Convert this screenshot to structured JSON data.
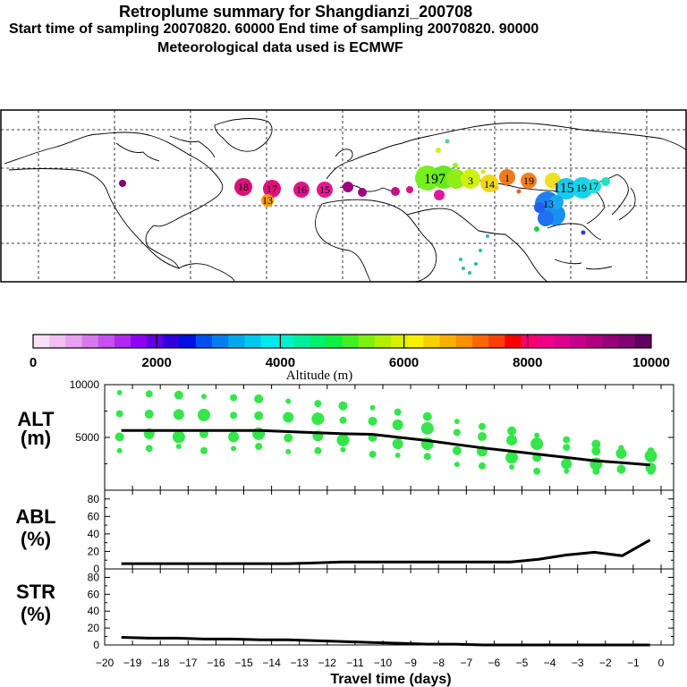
{
  "header": {
    "title": "Retroplume summary for Shangdianzi_200708",
    "times": "Start time of sampling 20070820. 60000     End time of sampling 20070820. 90000",
    "met": "Meteorological data used is ECMWF"
  },
  "map": {
    "clusters": [
      {
        "label": "18",
        "color": "#e0147a"
      },
      {
        "label": "17",
        "color": "#e8107a"
      },
      {
        "label": "13",
        "color": "#ff9a00"
      },
      {
        "label": "16",
        "color": "#e0148a"
      },
      {
        "label": "15",
        "color": "#e81890"
      },
      {
        "label": "197",
        "color": "#62ea1c"
      },
      {
        "label": "3",
        "color": "#d8ee10"
      },
      {
        "label": "14",
        "color": "#f0d020"
      },
      {
        "label": "1",
        "color": "#f07a18"
      },
      {
        "label": "19",
        "color": "#f08020"
      },
      {
        "label": "115",
        "color": "#18c8f0"
      },
      {
        "label": "19",
        "color": "#18d0e8"
      },
      {
        "label": "17",
        "color": "#20b8f0"
      },
      {
        "label": "13",
        "color": "#2070f0"
      }
    ]
  },
  "colorbar": {
    "colors": [
      "#f8e0f8",
      "#f0c0f0",
      "#e8a0f0",
      "#d878f0",
      "#c850f0",
      "#b028f0",
      "#9000f0",
      "#6000e0",
      "#3000e0",
      "#0010e0",
      "#0050f0",
      "#0080f0",
      "#00a8f0",
      "#00c8f0",
      "#00e8f0",
      "#00f0d0",
      "#00f0a0",
      "#00f070",
      "#10f040",
      "#40f020",
      "#80f010",
      "#b0f000",
      "#d8f000",
      "#f8f000",
      "#f8d000",
      "#f8b000",
      "#f89000",
      "#f86800",
      "#f84000",
      "#f80000",
      "#f8006c",
      "#f00088",
      "#e00090",
      "#c80090",
      "#b00080",
      "#980078",
      "#800070",
      "#600060"
    ],
    "labels": [
      "0",
      "2000",
      "4000",
      "6000",
      "8000",
      "10000"
    ],
    "title": "Altitude (m)"
  },
  "chart_data": [
    {
      "type": "line",
      "panel": "ALT",
      "ylabel": "ALT\n(m)",
      "ylabel_line1": "ALT",
      "ylabel_line2": "(m)",
      "ylim": [
        0,
        10000
      ],
      "yticks": [
        "10000",
        "5000"
      ],
      "x": [
        -19.4,
        -18.4,
        -17.4,
        -16.4,
        -15.4,
        -14.4,
        -13.4,
        -12.4,
        -11.4,
        -10.4,
        -9.4,
        -8.4,
        -7.4,
        -6.4,
        -5.4,
        -4.4,
        -3.4,
        -2.4,
        -1.4,
        -0.4
      ],
      "series": [
        {
          "name": "median altitude",
          "values": [
            5650,
            5650,
            5650,
            5650,
            5650,
            5650,
            5550,
            5450,
            5350,
            5300,
            5000,
            4700,
            4350,
            4000,
            3700,
            3400,
            3100,
            2800,
            2600,
            2400
          ]
        }
      ],
      "scatter_note": "green cluster dots"
    },
    {
      "type": "line",
      "panel": "ABL",
      "ylabel_line1": "ABL",
      "ylabel_line2": "(%)",
      "ylim": [
        0,
        90
      ],
      "yticks": [
        "80",
        "60",
        "40",
        "20",
        "0"
      ],
      "x": [
        -19.4,
        -18.4,
        -17.4,
        -16.4,
        -15.4,
        -14.4,
        -13.4,
        -12.4,
        -11.4,
        -10.4,
        -9.4,
        -8.4,
        -7.4,
        -6.4,
        -5.4,
        -4.4,
        -3.4,
        -2.4,
        -1.4,
        -0.4
      ],
      "series": [
        {
          "name": "ABL fraction",
          "values": [
            6,
            6,
            6,
            6,
            6,
            6,
            6,
            7,
            8,
            8,
            8,
            8,
            8,
            8,
            8,
            11,
            16,
            19,
            15,
            33
          ]
        }
      ]
    },
    {
      "type": "line",
      "panel": "STR",
      "ylabel_line1": "STR",
      "ylabel_line2": "(%)",
      "ylim": [
        0,
        90
      ],
      "yticks": [
        "80",
        "60",
        "40",
        "20",
        "0"
      ],
      "x": [
        -19.4,
        -18.4,
        -17.4,
        -16.4,
        -15.4,
        -14.4,
        -13.4,
        -12.4,
        -11.4,
        -10.4,
        -9.4,
        -8.4,
        -7.4,
        -6.4,
        -5.4,
        -4.4,
        -3.4,
        -2.4,
        -1.4,
        -0.4
      ],
      "series": [
        {
          "name": "stratospheric fraction",
          "values": [
            9,
            8,
            8,
            7,
            7,
            6,
            6,
            5,
            4,
            3,
            2,
            1,
            1,
            0,
            0,
            0,
            0,
            0,
            0,
            0
          ]
        }
      ],
      "xlabel": "Travel time (days)",
      "xticks": [
        "−20",
        "−19",
        "−18",
        "−17",
        "−16",
        "−15",
        "−14",
        "−13",
        "−12",
        "−11",
        "−10",
        "−9",
        "−8",
        "−7",
        "−6",
        "−5",
        "−4",
        "−3",
        "−2",
        "−1",
        "0"
      ]
    }
  ]
}
